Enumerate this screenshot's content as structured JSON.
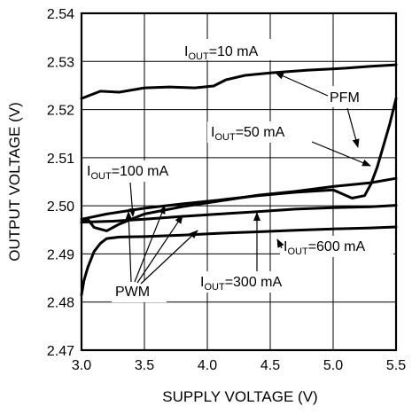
{
  "chart_data": {
    "type": "line",
    "title": "",
    "xlabel": "SUPPLY VOLTAGE (V)",
    "ylabel": "OUTPUT VOLTAGE (V)",
    "xlim": [
      3.0,
      5.5
    ],
    "ylim": [
      2.47,
      2.54
    ],
    "x_ticks": [
      "3.0",
      "3.5",
      "4.0",
      "4.5",
      "5.0",
      "5.5"
    ],
    "y_ticks": [
      "2.47",
      "2.48",
      "2.49",
      "2.50",
      "2.51",
      "2.52",
      "2.53",
      "2.54"
    ],
    "grid": true,
    "series": [
      {
        "name": "IOUT=10 mA",
        "x": [
          3.0,
          3.15,
          3.3,
          3.5,
          3.7,
          3.9,
          4.05,
          4.15,
          4.3,
          4.5,
          4.8,
          5.1,
          5.3,
          5.5
        ],
        "y": [
          2.5223,
          2.5238,
          2.5236,
          2.5245,
          2.5247,
          2.5245,
          2.5249,
          2.5262,
          2.5271,
          2.5276,
          2.5282,
          2.5286,
          2.529,
          2.5293
        ]
      },
      {
        "name": "IOUT=50 mA",
        "x": [
          3.0,
          3.2,
          3.5,
          3.8,
          4.1,
          4.4,
          4.7,
          5.0,
          5.15,
          5.25,
          5.3,
          5.35,
          5.4,
          5.45,
          5.5
        ],
        "y": [
          2.4972,
          2.4983,
          2.4995,
          2.5004,
          2.5012,
          2.5021,
          2.5028,
          2.5033,
          2.5016,
          2.5021,
          2.5045,
          2.508,
          2.5125,
          2.517,
          2.5223
        ]
      },
      {
        "name": "IOUT=100 mA",
        "x": [
          3.0,
          3.05,
          3.1,
          3.2,
          3.3,
          3.5,
          3.8,
          4.1,
          4.4,
          4.7,
          5.0,
          5.3,
          5.5
        ],
        "y": [
          2.4965,
          2.4972,
          2.4955,
          2.4948,
          2.4962,
          2.4983,
          2.4998,
          2.501,
          2.5022,
          2.503,
          2.504,
          2.5048,
          2.5057
        ]
      },
      {
        "name": "IOUT=300 mA",
        "x": [
          3.0,
          3.25,
          3.5,
          3.8,
          4.1,
          4.4,
          4.7,
          5.0,
          5.3,
          5.5
        ],
        "y": [
          2.4966,
          2.4968,
          2.4972,
          2.4978,
          2.4983,
          2.4988,
          2.4993,
          2.4996,
          2.4998,
          2.5001
        ]
      },
      {
        "name": "IOUT=600 mA",
        "x": [
          3.0,
          3.02,
          3.05,
          3.1,
          3.15,
          3.2,
          3.3,
          3.5,
          3.8,
          4.1,
          4.4,
          4.7,
          5.0,
          5.3,
          5.5
        ],
        "y": [
          2.4815,
          2.4845,
          2.4872,
          2.4905,
          2.4922,
          2.4932,
          2.4935,
          2.4936,
          2.4939,
          2.4943,
          2.4946,
          2.4949,
          2.4952,
          2.4954,
          2.4956
        ]
      }
    ],
    "annotations": {
      "iout10": {
        "main": "I",
        "sub": "OUT",
        "rest": "=10 mA"
      },
      "iout50": {
        "main": "I",
        "sub": "OUT",
        "rest": "=50 mA"
      },
      "iout100": {
        "main": "I",
        "sub": "OUT",
        "rest": "=100 mA"
      },
      "iout300": {
        "main": "I",
        "sub": "OUT",
        "rest": "=300 mA"
      },
      "iout600": {
        "main": "I",
        "sub": "OUT",
        "rest": "=600 mA"
      },
      "pfm": "PFM",
      "pwm": "PWM"
    }
  }
}
